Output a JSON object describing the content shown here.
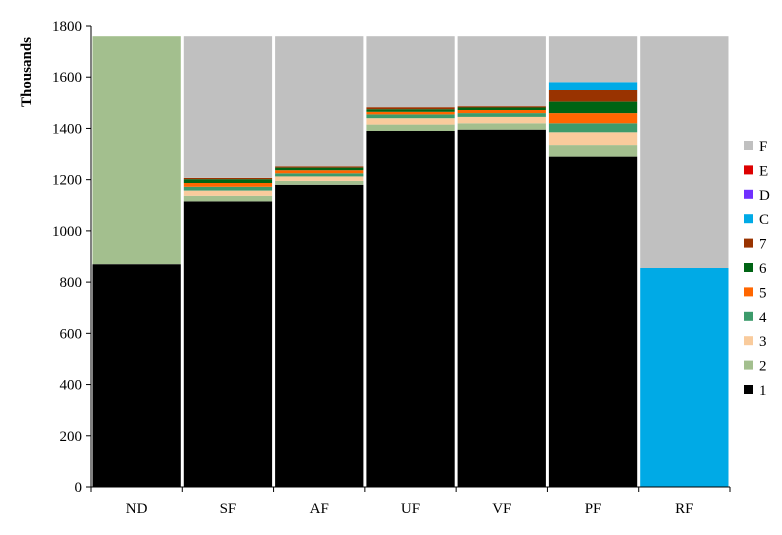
{
  "chart_data": {
    "type": "bar",
    "stacked": true,
    "ylabel": "Thousands",
    "xlabel": "",
    "ylim": [
      0,
      1800
    ],
    "yticks": [
      0,
      200,
      400,
      600,
      800,
      1000,
      1200,
      1400,
      1600,
      1800
    ],
    "categories": [
      "ND",
      "SF",
      "AF",
      "UF",
      "VF",
      "PF",
      "RF"
    ],
    "series": [
      {
        "name": "1",
        "color": "#000000",
        "values": [
          870,
          1115,
          1180,
          1390,
          1395,
          1290,
          0
        ]
      },
      {
        "name": "2",
        "color": "#a3bf8e",
        "values": [
          890,
          22,
          15,
          25,
          25,
          45,
          0
        ]
      },
      {
        "name": "3",
        "color": "#f9cb9c",
        "values": [
          0,
          20,
          18,
          25,
          25,
          50,
          0
        ]
      },
      {
        "name": "4",
        "color": "#3c9b6b",
        "values": [
          0,
          15,
          12,
          15,
          15,
          35,
          0
        ]
      },
      {
        "name": "5",
        "color": "#ff6600",
        "values": [
          0,
          15,
          12,
          10,
          12,
          40,
          0
        ]
      },
      {
        "name": "6",
        "color": "#006414",
        "values": [
          0,
          15,
          10,
          10,
          10,
          45,
          0
        ]
      },
      {
        "name": "7",
        "color": "#993300",
        "values": [
          0,
          5,
          5,
          8,
          5,
          45,
          0
        ]
      },
      {
        "name": "C",
        "color": "#00aae6",
        "values": [
          0,
          0,
          0,
          0,
          0,
          30,
          855
        ]
      },
      {
        "name": "D",
        "color": "#7030ff",
        "values": [
          0,
          0,
          0,
          0,
          0,
          0,
          0
        ]
      },
      {
        "name": "E",
        "color": "#dd0000",
        "values": [
          0,
          0,
          0,
          0,
          0,
          0,
          0
        ]
      },
      {
        "name": "F",
        "color": "#c0c0c0",
        "values": [
          0,
          553,
          508,
          277,
          273,
          180,
          905
        ]
      }
    ],
    "legend_position": "right",
    "grid": false
  }
}
